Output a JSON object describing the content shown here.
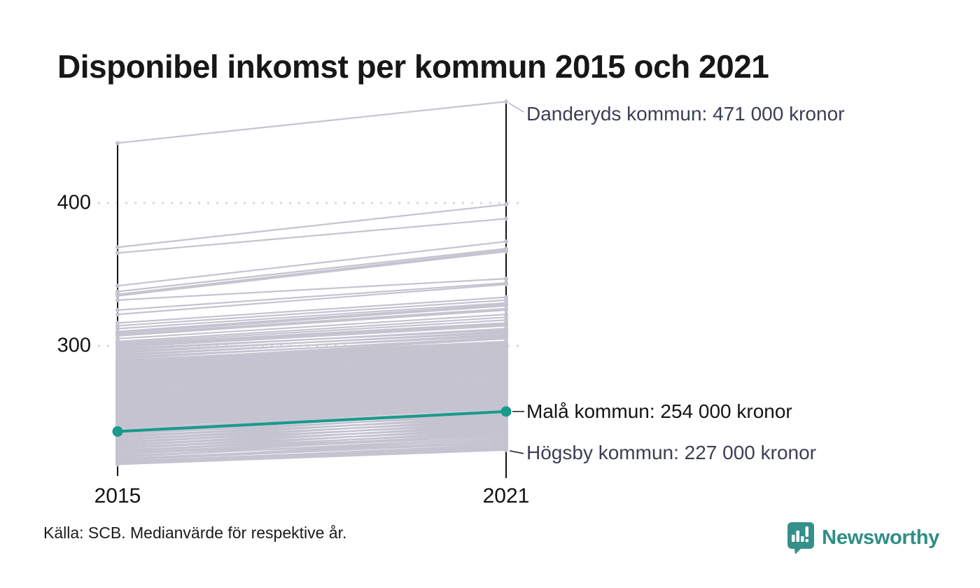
{
  "title": "Disponibel inkomst per kommun 2015 och 2021",
  "source": "Källa: SCB. Medianvärde för respektive år.",
  "brand": {
    "name": "Newsworthy"
  },
  "colors": {
    "accent": "#1a9a8b",
    "line_gray": "#c5c3d0",
    "axis": "#121212",
    "grid": "#d9d9d9",
    "annotation_muted": "#3a4054",
    "annotation_highlight": "#141414",
    "leader_muted": "#b9b7c6",
    "leader_dark": "#2b2b2b",
    "brand_teal": "#35908a"
  },
  "chart_data": {
    "type": "line",
    "subtype": "slope-chart",
    "x_labels": [
      "2015",
      "2021"
    ],
    "years": [
      2015,
      2021
    ],
    "unit_hint": "000 kronor",
    "ylim": [
      210,
      480
    ],
    "grid": "dotted-horizontal",
    "y_ticks": [
      {
        "value": 400,
        "label": "400"
      },
      {
        "value": 300,
        "label": "300"
      }
    ],
    "highlight_series": {
      "name": "Malå kommun",
      "values": [
        240,
        254
      ]
    },
    "annotations": [
      {
        "id": "danderyd",
        "text": "Danderyds kommun: 471 000 kronor",
        "value_2021": 471,
        "style": "muted"
      },
      {
        "id": "mala",
        "text": "Malå kommun: 254 000 kronor",
        "value_2021": 254,
        "style": "highlight"
      },
      {
        "id": "hogsby",
        "text": "Högsby kommun: 227 000 kronor",
        "value_2021": 227,
        "style": "muted"
      }
    ],
    "background_lines": [
      [
        442,
        471
      ],
      [
        369,
        399
      ],
      [
        365,
        389
      ],
      [
        342,
        373
      ],
      [
        338,
        368
      ],
      [
        336,
        367
      ],
      [
        335,
        366
      ],
      [
        332,
        347
      ],
      [
        325,
        344
      ],
      [
        322,
        343
      ],
      [
        316,
        334
      ],
      [
        314,
        332
      ],
      [
        312,
        330
      ],
      [
        310,
        329
      ],
      [
        309,
        328
      ],
      [
        217,
        227
      ],
      [
        217,
        228
      ],
      [
        218,
        229
      ],
      [
        218,
        231
      ],
      [
        219,
        230
      ],
      [
        220,
        232
      ],
      [
        220,
        235
      ],
      [
        221,
        233
      ],
      [
        222,
        236
      ],
      [
        222,
        239
      ],
      [
        223,
        234
      ],
      [
        224,
        237
      ],
      [
        224,
        241
      ],
      [
        225,
        238
      ],
      [
        226,
        240
      ],
      [
        226,
        243
      ],
      [
        227,
        239
      ],
      [
        228,
        242
      ],
      [
        228,
        245
      ],
      [
        229,
        241
      ],
      [
        230,
        244
      ],
      [
        230,
        247
      ],
      [
        231,
        243
      ],
      [
        232,
        246
      ],
      [
        232,
        249
      ],
      [
        233,
        245
      ],
      [
        234,
        248
      ],
      [
        234,
        251
      ],
      [
        235,
        247
      ],
      [
        236,
        250
      ],
      [
        236,
        253
      ],
      [
        237,
        249
      ],
      [
        238,
        252
      ],
      [
        238,
        255
      ],
      [
        239,
        251
      ],
      [
        240,
        253
      ],
      [
        241,
        255
      ],
      [
        241,
        257
      ],
      [
        242,
        254
      ],
      [
        243,
        256
      ],
      [
        243,
        259
      ],
      [
        244,
        257
      ],
      [
        245,
        258
      ],
      [
        245,
        261
      ],
      [
        246,
        259
      ],
      [
        247,
        260
      ],
      [
        247,
        263
      ],
      [
        248,
        261
      ],
      [
        249,
        262
      ],
      [
        249,
        265
      ],
      [
        250,
        263
      ],
      [
        251,
        264
      ],
      [
        251,
        267
      ],
      [
        252,
        265
      ],
      [
        253,
        266
      ],
      [
        253,
        269
      ],
      [
        254,
        267
      ],
      [
        255,
        268
      ],
      [
        255,
        271
      ],
      [
        256,
        269
      ],
      [
        257,
        270
      ],
      [
        257,
        273
      ],
      [
        258,
        271
      ],
      [
        259,
        272
      ],
      [
        259,
        275
      ],
      [
        260,
        273
      ],
      [
        261,
        274
      ],
      [
        261,
        277
      ],
      [
        262,
        275
      ],
      [
        263,
        276
      ],
      [
        263,
        279
      ],
      [
        264,
        277
      ],
      [
        265,
        278
      ],
      [
        265,
        281
      ],
      [
        266,
        279
      ],
      [
        267,
        280
      ],
      [
        267,
        283
      ],
      [
        268,
        281
      ],
      [
        269,
        282
      ],
      [
        269,
        285
      ],
      [
        270,
        283
      ],
      [
        271,
        284
      ],
      [
        271,
        287
      ],
      [
        272,
        285
      ],
      [
        273,
        286
      ],
      [
        273,
        289
      ],
      [
        274,
        287
      ],
      [
        275,
        288
      ],
      [
        275,
        291
      ],
      [
        276,
        289
      ],
      [
        277,
        290
      ],
      [
        277,
        293
      ],
      [
        278,
        291
      ],
      [
        279,
        292
      ],
      [
        279,
        295
      ],
      [
        280,
        293
      ],
      [
        281,
        294
      ],
      [
        281,
        297
      ],
      [
        282,
        295
      ],
      [
        283,
        296
      ],
      [
        283,
        299
      ],
      [
        284,
        297
      ],
      [
        285,
        298
      ],
      [
        285,
        301
      ],
      [
        286,
        299
      ],
      [
        287,
        300
      ],
      [
        287,
        303
      ],
      [
        288,
        301
      ],
      [
        289,
        302
      ],
      [
        289,
        305
      ],
      [
        290,
        303
      ],
      [
        291,
        306
      ],
      [
        292,
        305
      ],
      [
        293,
        308
      ],
      [
        294,
        307
      ],
      [
        295,
        310
      ],
      [
        296,
        309
      ],
      [
        297,
        312
      ],
      [
        298,
        311
      ],
      [
        299,
        314
      ],
      [
        300,
        315
      ],
      [
        301,
        316
      ],
      [
        302,
        318
      ],
      [
        303,
        320
      ],
      [
        305,
        322
      ],
      [
        307,
        325
      ],
      [
        308,
        326
      ]
    ]
  }
}
